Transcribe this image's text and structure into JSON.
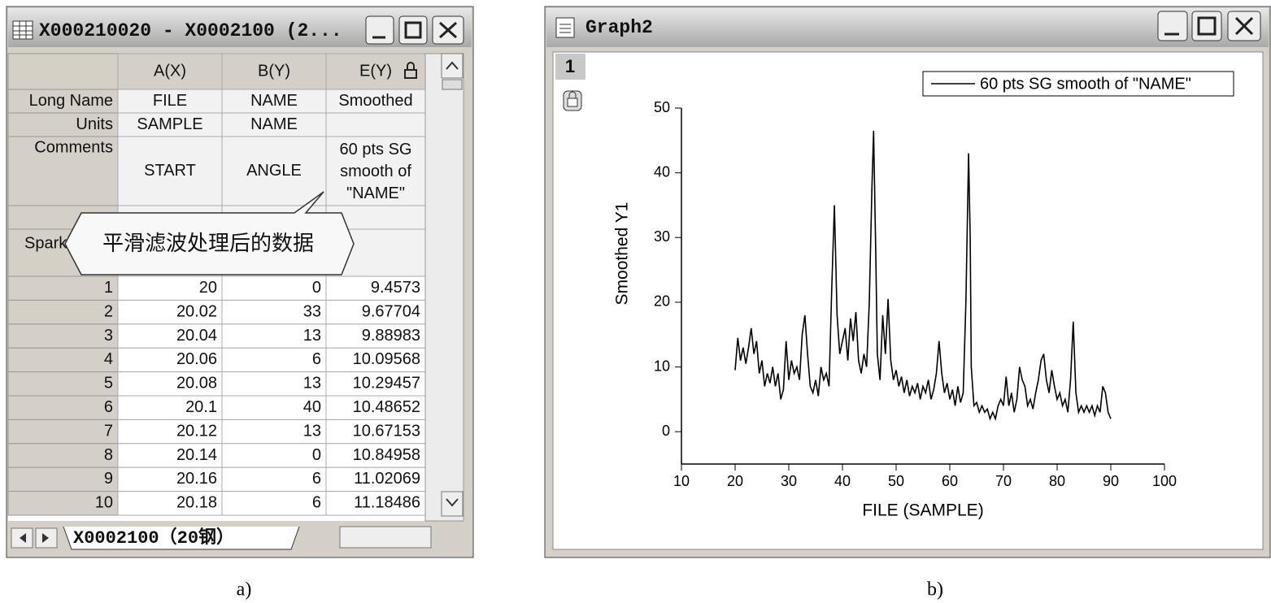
{
  "window_a": {
    "title": "X000210020 - X0002100 (2...",
    "columns": [
      "A(X)",
      "B(Y)",
      "E(Y)"
    ],
    "meta_rows": [
      {
        "label": "Long Name",
        "cells": [
          "FILE",
          "NAME",
          "Smoothed"
        ]
      },
      {
        "label": "Units",
        "cells": [
          "SAMPLE",
          "NAME"
        ]
      },
      {
        "label": "Comments",
        "cells": [
          "START",
          "ANGLE",
          "60 pts SG smooth of \"NAME\""
        ]
      }
    ],
    "sparklines_label": "Sparklines",
    "rows": [
      [
        1,
        20,
        0,
        9.4573
      ],
      [
        2,
        20.02,
        33,
        9.67704
      ],
      [
        3,
        20.04,
        13,
        9.88983
      ],
      [
        4,
        20.06,
        6,
        10.09568
      ],
      [
        5,
        20.08,
        13,
        10.29457
      ],
      [
        6,
        20.1,
        40,
        10.48652
      ],
      [
        7,
        20.12,
        13,
        10.67153
      ],
      [
        8,
        20.14,
        0,
        10.84958
      ],
      [
        9,
        20.16,
        6,
        11.02069
      ],
      [
        10,
        20.18,
        6,
        11.18486
      ]
    ],
    "callout": "平滑滤波处理后的数据",
    "sheet_tab": "X0002100（20钢）"
  },
  "window_b": {
    "title": "Graph2",
    "layer": "1"
  },
  "captions": [
    "a)",
    "b)"
  ],
  "chart_data": {
    "type": "line",
    "xlabel": "FILE (SAMPLE)",
    "ylabel": "Smoothed Y1",
    "xlim": [
      10,
      100
    ],
    "ylim": [
      -5,
      50
    ],
    "xticks": [
      10,
      20,
      30,
      40,
      50,
      60,
      70,
      80,
      90,
      100
    ],
    "yticks": [
      0,
      10,
      20,
      30,
      40,
      50
    ],
    "legend": "top-right",
    "x": [
      20,
      20.5,
      21,
      21.5,
      22,
      22.5,
      23,
      23.5,
      24,
      24.5,
      25,
      25.5,
      26,
      26.5,
      27,
      27.5,
      28,
      28.5,
      29,
      29.5,
      30,
      30.5,
      31,
      31.5,
      32,
      32.5,
      33,
      33.5,
      34,
      34.5,
      35,
      35.5,
      36,
      36.5,
      37,
      37.5,
      38,
      38.5,
      39,
      39.5,
      40,
      40.5,
      41,
      41.5,
      42,
      42.5,
      43,
      43.5,
      44,
      44.5,
      45,
      45.5,
      45.8,
      46.2,
      46.5,
      47,
      47.5,
      48,
      48.5,
      49,
      49.5,
      50,
      50.5,
      51,
      51.5,
      52,
      52.5,
      53,
      53.5,
      54,
      54.5,
      55,
      55.5,
      56,
      56.5,
      57,
      57.5,
      58,
      58.5,
      59,
      59.5,
      60,
      60.5,
      61,
      61.5,
      62,
      62.5,
      63,
      63.5,
      63.8,
      64,
      64.5,
      65,
      65.5,
      66,
      66.5,
      67,
      67.5,
      68,
      68.5,
      69,
      69.5,
      70,
      70.5,
      71,
      71.5,
      72,
      72.5,
      73,
      73.5,
      74,
      74.5,
      75,
      75.5,
      76,
      76.5,
      77,
      77.5,
      78,
      78.5,
      79,
      79.5,
      80,
      80.5,
      81,
      81.5,
      82,
      82.5,
      83,
      83.5,
      84,
      84.5,
      85,
      85.5,
      86,
      86.5,
      87,
      87.5,
      88,
      88.5,
      89,
      89.5,
      90
    ],
    "series": [
      {
        "name": "60 pts SG smooth of \"NAME\"",
        "color": "#000000",
        "values": [
          9.5,
          14.5,
          11,
          13,
          10.5,
          13,
          16,
          12,
          14,
          9,
          11,
          7,
          9,
          7.5,
          10,
          7,
          9,
          5,
          6.5,
          14,
          8,
          11,
          9,
          10,
          8,
          15,
          18,
          12,
          7,
          6,
          8,
          5.5,
          10,
          8,
          9,
          7,
          22,
          35,
          18,
          12,
          14,
          16,
          11,
          17.5,
          14,
          18.5,
          11,
          9,
          12,
          10,
          20,
          38,
          46.5,
          28,
          12,
          8,
          18,
          12,
          20.5,
          11,
          8,
          9.5,
          7,
          8.5,
          6,
          8,
          5.5,
          7,
          6,
          7.5,
          5,
          7,
          6,
          8,
          5,
          6.5,
          9,
          14,
          9,
          6,
          7.5,
          5,
          6.5,
          4,
          7,
          4.5,
          6,
          20,
          43,
          30,
          10,
          4,
          4.5,
          3,
          4,
          3,
          3.5,
          2,
          3,
          2,
          4,
          5,
          4,
          8.5,
          4,
          6,
          3,
          5,
          10,
          8,
          7,
          4,
          5,
          3.5,
          6,
          8,
          11,
          12,
          8,
          6,
          9.5,
          7,
          5,
          6,
          4,
          5,
          3,
          8,
          17,
          6,
          3,
          4,
          3,
          4,
          3,
          4,
          2.5,
          4,
          3,
          7,
          6,
          3,
          2
        ]
      }
    ]
  }
}
